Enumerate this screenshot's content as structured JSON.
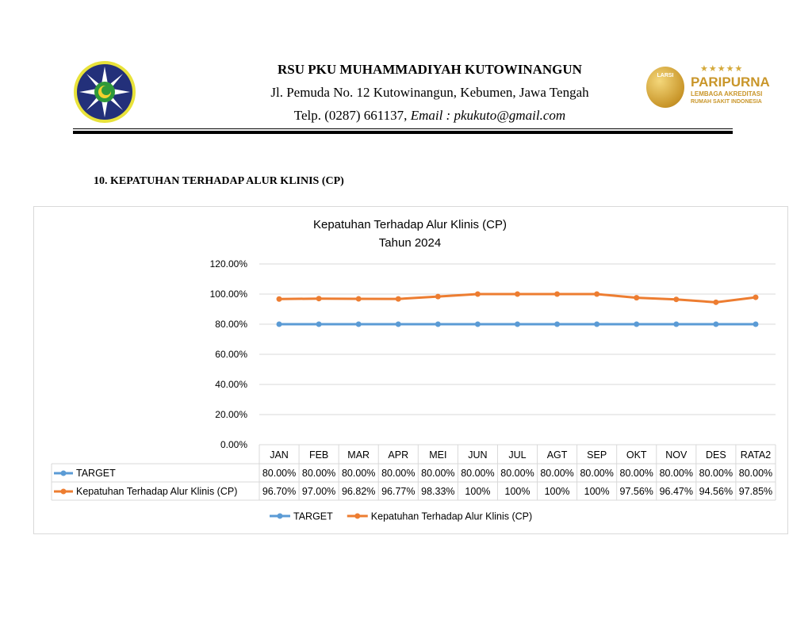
{
  "header": {
    "org_name": "RSU PKU MUHAMMADIYAH KUTOWINANGUN",
    "address": "Jl. Pemuda No. 12 Kutowinangun, Kebumen, Jawa Tengah",
    "phone": "Telp. (0287) 661137, ",
    "email": "Email : pkukuto@gmail.com",
    "accreditation_logo": {
      "badge": "LARSI",
      "title": "PARIPURNA",
      "line1": "LEMBAGA AKREDITASI",
      "line2": "RUMAH SAKIT INDONESIA"
    }
  },
  "section_title": "10. KEPATUHAN TERHADAP ALUR KLINIS (CP)",
  "chart_data": {
    "type": "line",
    "title": "Kepatuhan Terhadap Alur Klinis (CP)",
    "subtitle": "Tahun 2024",
    "categories": [
      "JAN",
      "FEB",
      "MAR",
      "APR",
      "MEI",
      "JUN",
      "JUL",
      "AGT",
      "SEP",
      "OKT",
      "NOV",
      "DES",
      "RATA2"
    ],
    "ylim": [
      0,
      120
    ],
    "yticks": [
      "0.00%",
      "20.00%",
      "40.00%",
      "60.00%",
      "80.00%",
      "100.00%",
      "120.00%"
    ],
    "grid": true,
    "legend_placement": "bottom",
    "series": [
      {
        "name": "TARGET",
        "color": "#5b9bd5",
        "values": [
          80,
          80,
          80,
          80,
          80,
          80,
          80,
          80,
          80,
          80,
          80,
          80,
          80
        ],
        "labels": [
          "80.00%",
          "80.00%",
          "80.00%",
          "80.00%",
          "80.00%",
          "80.00%",
          "80.00%",
          "80.00%",
          "80.00%",
          "80.00%",
          "80.00%",
          "80.00%",
          "80.00%"
        ]
      },
      {
        "name": "Kepatuhan Terhadap Alur Klinis (CP)",
        "color": "#ed7d31",
        "values": [
          96.7,
          97.0,
          96.82,
          96.77,
          98.33,
          100,
          100,
          100,
          100,
          97.56,
          96.47,
          94.56,
          97.85
        ],
        "labels": [
          "96.70%",
          "97.00%",
          "96.82%",
          "96.77%",
          "98.33%",
          "100%",
          "100%",
          "100%",
          "100%",
          "97.56%",
          "96.47%",
          "94.56%",
          "97.85%"
        ]
      }
    ]
  }
}
